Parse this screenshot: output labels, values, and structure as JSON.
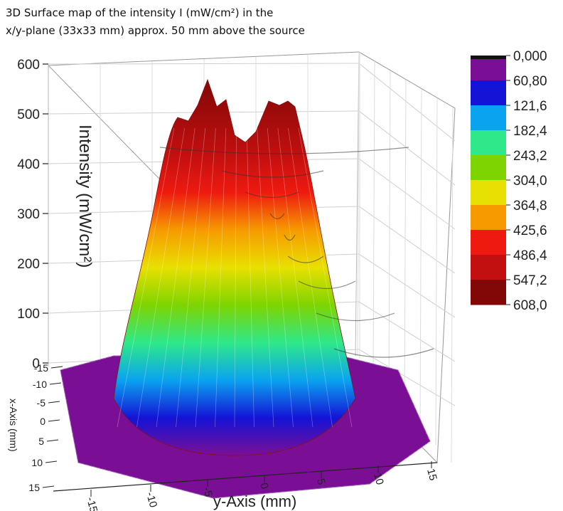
{
  "chart_data": {
    "type": "3d-surface",
    "title_lines": [
      "3D Surface map of the intensity I (mW/cm²) in the",
      "x/y-plane (33x33 mm) approx. 50 mm above the source"
    ],
    "zlabel": "Intensity (mW/cm²)",
    "ylabel": "y-Axis (mm)",
    "xlabel": "x-Axis (mm)",
    "z_ticks": [
      "0",
      "100",
      "200",
      "300",
      "400",
      "500",
      "600"
    ],
    "y_ticks": [
      "-15",
      "-10",
      "-5",
      "0",
      "5",
      "10",
      "15"
    ],
    "x_ticks": [
      "-15",
      "-10",
      "-5",
      "0",
      "5",
      "10",
      "15"
    ],
    "zlim": [
      0,
      608
    ],
    "xlim": [
      -15,
      15
    ],
    "ylim": [
      -15,
      15
    ],
    "colorscale": {
      "labels": [
        "0,000",
        "60,80",
        "121,6",
        "182,4",
        "243,2",
        "304,0",
        "364,8",
        "425,6",
        "486,4",
        "547,2",
        "608,0"
      ],
      "colors": [
        "#7a0f95",
        "#1413d6",
        "#0aa3f0",
        "#2ee88a",
        "#7ed400",
        "#e8e000",
        "#f79a00",
        "#ee1a10",
        "#c20f0f",
        "#820808"
      ]
    },
    "surface": {
      "description": "plateau",
      "center": [
        0,
        0
      ],
      "radius_mm": 9,
      "baseline": 20,
      "peaks": [
        575,
        555,
        548,
        535
      ]
    },
    "grid": true
  }
}
